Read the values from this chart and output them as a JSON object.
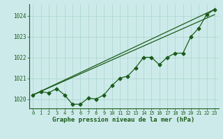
{
  "title": "Graphe pression niveau de la mer (hPa)",
  "background_color": "#cdeaea",
  "grid_color": "#a8d5cc",
  "line_color": "#1a5c1a",
  "xlim": [
    -0.5,
    23.5
  ],
  "ylim": [
    1019.55,
    1024.55
  ],
  "yticks": [
    1020,
    1021,
    1022,
    1023,
    1024
  ],
  "xticks": [
    0,
    1,
    2,
    3,
    4,
    5,
    6,
    7,
    8,
    9,
    10,
    11,
    12,
    13,
    14,
    15,
    16,
    17,
    18,
    19,
    20,
    21,
    22,
    23
  ],
  "series_data": [
    1020.2,
    1020.35,
    1020.3,
    1020.5,
    1020.2,
    1019.75,
    1019.75,
    1020.05,
    1020.0,
    1020.2,
    1020.65,
    1021.0,
    1021.1,
    1021.5,
    1022.0,
    1022.0,
    1021.65,
    1022.0,
    1022.2,
    1022.2,
    1023.0,
    1023.4,
    1024.05,
    1024.3
  ],
  "straight_line1": [
    [
      0,
      1020.2
    ],
    [
      23,
      1024.3
    ]
  ],
  "straight_line2": [
    [
      0,
      1020.2
    ],
    [
      23,
      1024.3
    ]
  ],
  "straight_line3": [
    [
      0,
      1020.2
    ],
    [
      23,
      1024.05
    ]
  ],
  "marker": "D",
  "marker_size": 2.5,
  "linewidth": 0.9,
  "tick_fontsize": 5.5,
  "title_fontsize": 6.5
}
